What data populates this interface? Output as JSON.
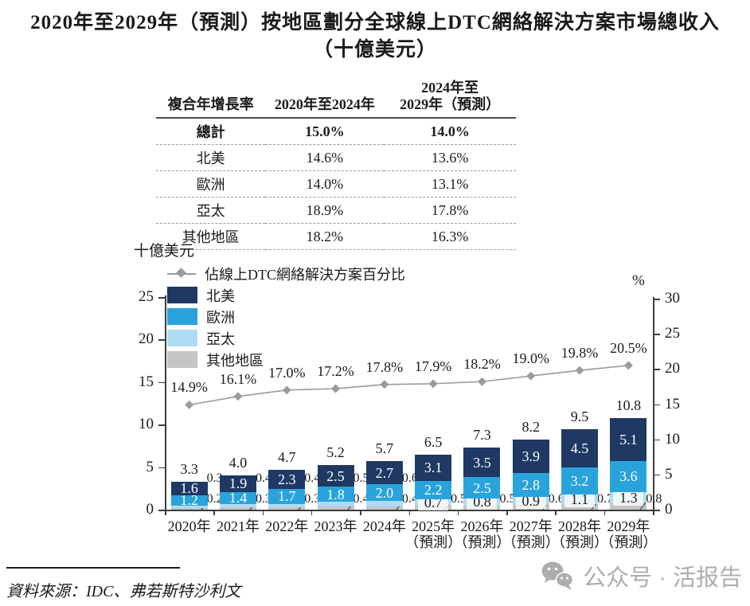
{
  "title": {
    "line1": "2020年至2029年（預測）按地區劃分全球線上DTC網絡解決方案市場總收入",
    "line2": "（十億美元）"
  },
  "table": {
    "header": {
      "col1": "複合年增長率",
      "col2": "2020年至2024年",
      "col3a": "2024年至",
      "col3b": "2029年（預測）"
    },
    "rows": [
      {
        "label": "總計",
        "v1": "15.0%",
        "v2": "14.0%",
        "bold": true
      },
      {
        "label": "北美",
        "v1": "14.6%",
        "v2": "13.6%",
        "bold": false
      },
      {
        "label": "歐洲",
        "v1": "14.0%",
        "v2": "13.1%",
        "bold": false
      },
      {
        "label": "亞太",
        "v1": "18.9%",
        "v2": "17.8%",
        "bold": false
      },
      {
        "label": "其他地區",
        "v1": "18.2%",
        "v2": "16.3%",
        "bold": false
      }
    ]
  },
  "chart_data": {
    "type": "bar",
    "subtype": "stacked-bar-with-line",
    "categories": [
      "2020年",
      "2021年",
      "2022年",
      "2023年",
      "2024年",
      "2025年",
      "2026年",
      "2027年",
      "2028年",
      "2029年"
    ],
    "forecast_suffix": "（預測）",
    "forecast_start_index": 5,
    "series": [
      {
        "name": "北美",
        "color": "#1F3864",
        "label_color": "#ffffff",
        "values": [
          1.6,
          1.9,
          2.3,
          2.5,
          2.7,
          3.1,
          3.5,
          3.9,
          4.5,
          5.1
        ]
      },
      {
        "name": "歐洲",
        "color": "#29A3DC",
        "label_color": "#ffffff",
        "values": [
          1.2,
          1.4,
          1.7,
          1.8,
          2.0,
          2.2,
          2.5,
          2.8,
          3.2,
          3.6
        ]
      },
      {
        "name": "亞太",
        "color": "#AEDCF3",
        "label_color": "#1a1a1a",
        "values": [
          0.3,
          0.4,
          0.4,
          0.5,
          0.6,
          0.7,
          0.8,
          0.9,
          1.1,
          1.3
        ]
      },
      {
        "name": "其他地區",
        "color": "#C4C5C7",
        "label_color": "#1a1a1a",
        "values": [
          0.2,
          0.3,
          0.3,
          0.4,
          0.4,
          0.5,
          0.5,
          0.6,
          0.7,
          0.8
        ]
      }
    ],
    "totals": [
      3.3,
      4.0,
      4.7,
      5.2,
      5.7,
      6.5,
      7.3,
      8.2,
      9.5,
      10.8
    ],
    "line": {
      "name": "佔線上DTC網絡解決方案百分比",
      "color": "#9b9b9b",
      "marker": "diamond",
      "values": [
        14.9,
        16.1,
        17.0,
        17.2,
        17.8,
        17.9,
        18.2,
        19.0,
        19.8,
        20.5
      ],
      "value_labels": [
        "14.9%",
        "16.1%",
        "17.0%",
        "17.2%",
        "17.8%",
        "17.9%",
        "18.2%",
        "19.0%",
        "19.8%",
        "20.5%"
      ]
    },
    "left_axis": {
      "label": "十億美元",
      "ticks": [
        0,
        5,
        10,
        15,
        20,
        25
      ],
      "max": 25
    },
    "right_axis": {
      "label": "%",
      "ticks": [
        0,
        5,
        10,
        15,
        20,
        25,
        30
      ],
      "max": 30
    },
    "legend_position": "top-left",
    "grid": false
  },
  "source": {
    "text": "資料來源：IDC、弗若斯特沙利文"
  },
  "watermark": {
    "icon": "wechat-icon",
    "text": "公众号 · 活报告"
  }
}
